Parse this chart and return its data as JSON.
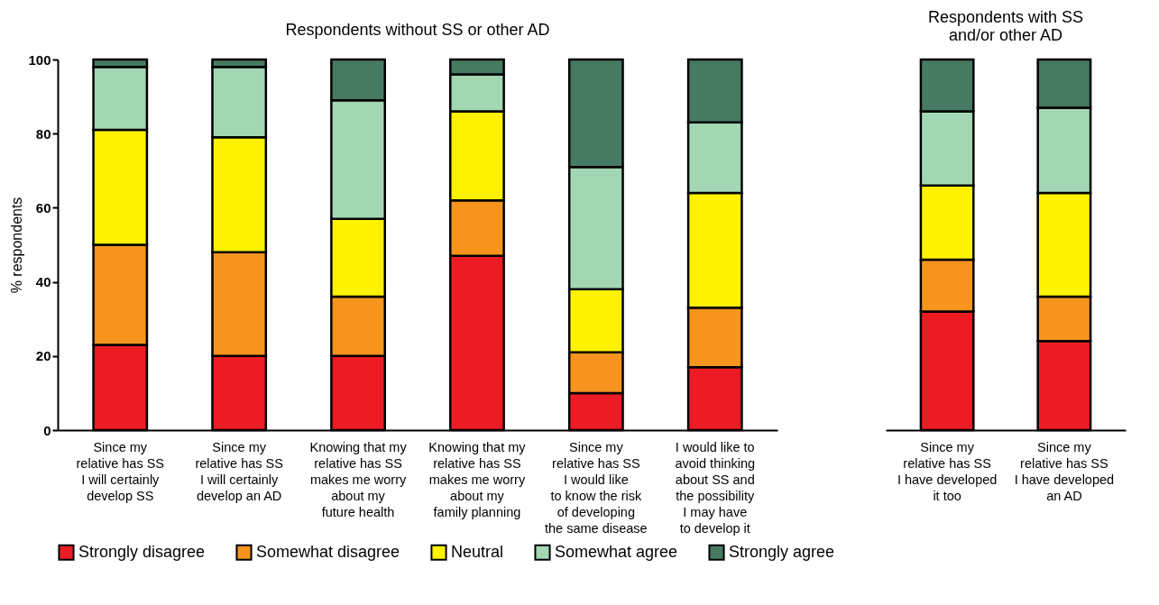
{
  "chart_data": [
    {
      "type": "bar",
      "stacked": true,
      "title": "Respondents without SS or other AD",
      "ylabel": "% respondents",
      "categories": [
        "Since my\nrelative has SS\nI will certainly\ndevelop SS",
        "Since my\nrelative has SS\nI will certainly\ndevelop an AD",
        "Knowing that my\nrelative has SS\nmakes me worry\nabout my\nfuture health",
        "Knowing that my\nrelative has SS\nmakes me worry\nabout my\nfamily planning",
        "Since my\nrelative has SS\nI would like\nto know the risk\nof developing\nthe same disease",
        "I would like to\navoid thinking\nabout SS and\nthe possibility\nI may have\nto develop it"
      ],
      "series": [
        {
          "name": "Strongly disagree",
          "color": "#ed1c24",
          "values": [
            23,
            20,
            20,
            47,
            10,
            17
          ]
        },
        {
          "name": "Somewhat disagree",
          "color": "#f7941d",
          "values": [
            27,
            28,
            16,
            15,
            11,
            16
          ]
        },
        {
          "name": "Neutral",
          "color": "#fff200",
          "values": [
            31,
            31,
            21,
            24,
            17,
            31
          ]
        },
        {
          "name": "Somewhat agree",
          "color": "#a3d7b3",
          "values": [
            17,
            19,
            32,
            10,
            33,
            19
          ]
        },
        {
          "name": "Strongly agree",
          "color": "#467a62",
          "values": [
            2,
            2,
            11,
            4,
            29,
            17
          ]
        }
      ],
      "ylim": [
        0,
        100
      ],
      "yticks": [
        0,
        20,
        40,
        60,
        80,
        100
      ],
      "legend": "bottom"
    },
    {
      "type": "bar",
      "stacked": true,
      "title": "Respondents with SS\nand/or other AD",
      "categories": [
        "Since my\nrelative has SS\nI have developed\nit too",
        "Since my\nrelative has SS\nI have developed\nan AD"
      ],
      "series": [
        {
          "name": "Strongly disagree",
          "color": "#ed1c24",
          "values": [
            32,
            24
          ]
        },
        {
          "name": "Somewhat disagree",
          "color": "#f7941d",
          "values": [
            14,
            12
          ]
        },
        {
          "name": "Neutral",
          "color": "#fff200",
          "values": [
            20,
            28
          ]
        },
        {
          "name": "Somewhat agree",
          "color": "#a3d7b3",
          "values": [
            20,
            23
          ]
        },
        {
          "name": "Strongly agree",
          "color": "#467a62",
          "values": [
            14,
            13
          ]
        }
      ],
      "ylim": [
        0,
        100
      ],
      "tick_labels": "x",
      "legend": false
    }
  ]
}
